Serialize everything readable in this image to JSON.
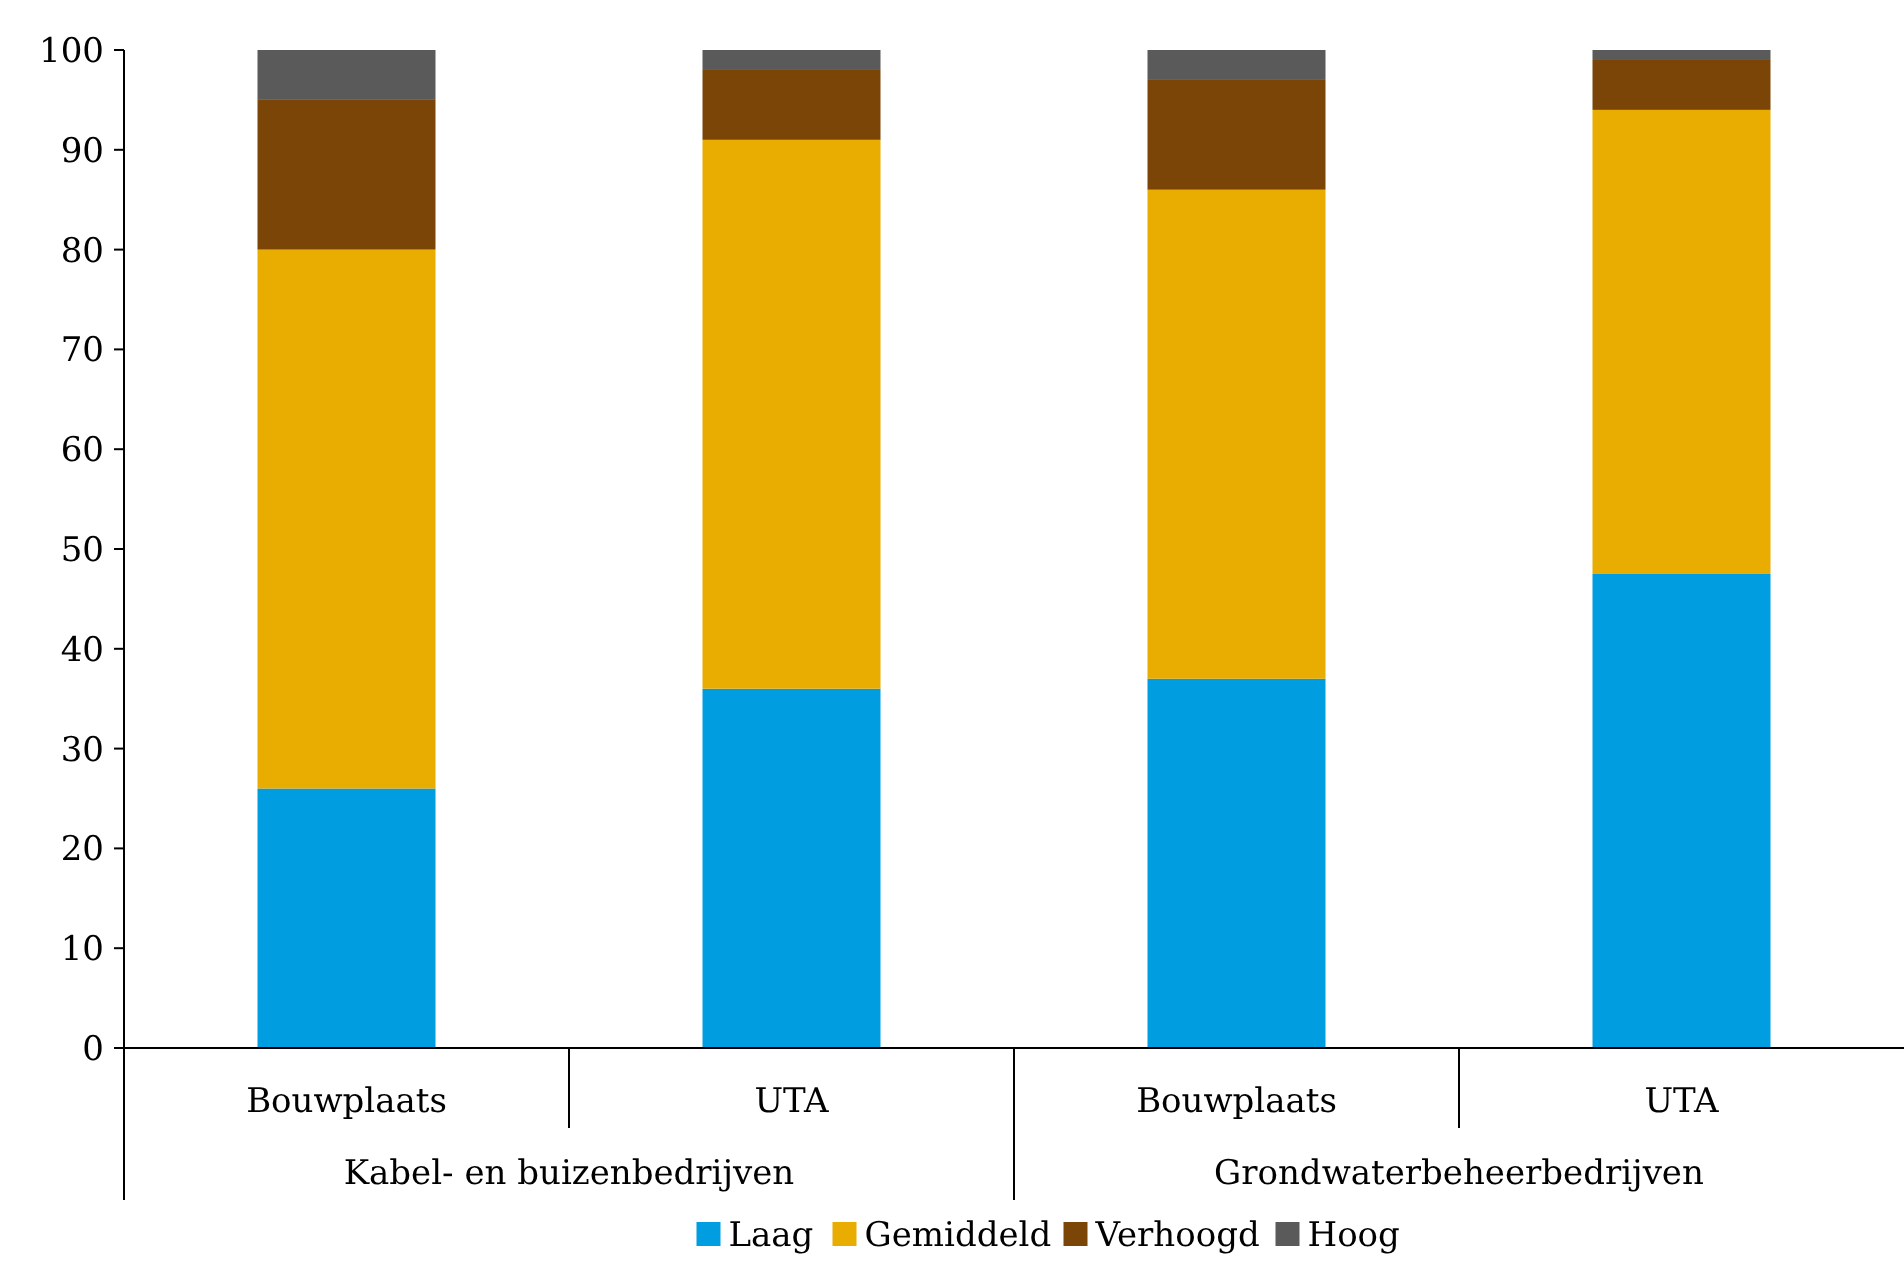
{
  "chart_data": {
    "type": "bar",
    "stacked": true,
    "categories": [
      "Bouwplaats",
      "UTA",
      "Bouwplaats",
      "UTA"
    ],
    "series": [
      {
        "name": "Laag",
        "color": "#009ee0",
        "values": [
          26,
          36,
          37,
          47.5
        ]
      },
      {
        "name": "Gemiddeld",
        "color": "#e9ac00",
        "values": [
          54,
          55,
          49,
          46.5
        ]
      },
      {
        "name": "Verhoogd",
        "color": "#7b4507",
        "values": [
          15,
          7,
          11,
          5
        ]
      },
      {
        "name": "Hoog",
        "color": "#5a5a5a",
        "values": [
          5,
          2,
          3,
          1
        ]
      }
    ],
    "annotations": [
      "Kabel- en buizenbedrijven",
      "Grondwaterbeheerbedrijven"
    ],
    "ylim": [
      0,
      100
    ],
    "yticks": [
      0,
      10,
      20,
      30,
      40,
      50,
      60,
      70,
      80,
      90,
      100
    ],
    "legend": "bottom"
  }
}
